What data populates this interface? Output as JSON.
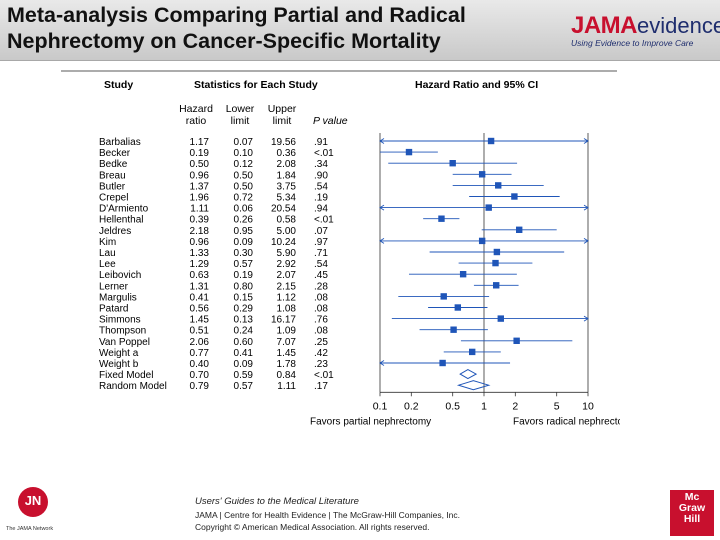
{
  "slide": {
    "title_line1": "Meta-analysis Comparing Partial and Radical",
    "title_line2": "Nephrectomy on Cancer-Specific Mortality"
  },
  "logo": {
    "brand_red": "JAMA",
    "brand_blue": "evidence",
    "tagline": "Using Evidence to Improve Care"
  },
  "chart_data": {
    "type": "forest",
    "headers": {
      "study": "Study",
      "stats": "Statistics for Each Study",
      "plot": "Hazard Ratio and 95% CI",
      "hr_line1": "Hazard",
      "hr_line2": "ratio",
      "lower_line1": "Lower",
      "lower_line2": "limit",
      "upper_line1": "Upper",
      "upper_line2": "limit",
      "p": "P value"
    },
    "x_scale": "log",
    "xlim": [
      0.1,
      10
    ],
    "x_ticks": [
      "0.1",
      "0.2",
      "0.5",
      "1",
      "2",
      "5",
      "10"
    ],
    "x_tick_values": [
      0.1,
      0.2,
      0.5,
      1,
      2,
      5,
      10
    ],
    "xlabel_left": "Favors partial nephrectomy",
    "xlabel_right": "Favors radical nephrectomy",
    "studies": [
      {
        "name": "Barbalias",
        "hr": "1.17",
        "lower": "0.07",
        "upper": "19.56",
        "p": ".91"
      },
      {
        "name": "Becker",
        "hr": "0.19",
        "lower": "0.10",
        "upper": "0.36",
        "p": "<.01"
      },
      {
        "name": "Bedke",
        "hr": "0.50",
        "lower": "0.12",
        "upper": "2.08",
        "p": ".34"
      },
      {
        "name": "Breau",
        "hr": "0.96",
        "lower": "0.50",
        "upper": "1.84",
        "p": ".90"
      },
      {
        "name": "Butler",
        "hr": "1.37",
        "lower": "0.50",
        "upper": "3.75",
        "p": ".54"
      },
      {
        "name": "Crepel",
        "hr": "1.96",
        "lower": "0.72",
        "upper": "5.34",
        "p": ".19"
      },
      {
        "name": "D'Armiento",
        "hr": "1.11",
        "lower": "0.06",
        "upper": "20.54",
        "p": ".94"
      },
      {
        "name": "Hellenthal",
        "hr": "0.39",
        "lower": "0.26",
        "upper": "0.58",
        "p": "<.01"
      },
      {
        "name": "Jeldres",
        "hr": "2.18",
        "lower": "0.95",
        "upper": "5.00",
        "p": ".07"
      },
      {
        "name": "Kim",
        "hr": "0.96",
        "lower": "0.09",
        "upper": "10.24",
        "p": ".97"
      },
      {
        "name": "Lau",
        "hr": "1.33",
        "lower": "0.30",
        "upper": "5.90",
        "p": ".71"
      },
      {
        "name": "Lee",
        "hr": "1.29",
        "lower": "0.57",
        "upper": "2.92",
        "p": ".54"
      },
      {
        "name": "Leibovich",
        "hr": "0.63",
        "lower": "0.19",
        "upper": "2.07",
        "p": ".45"
      },
      {
        "name": "Lerner",
        "hr": "1.31",
        "lower": "0.80",
        "upper": "2.15",
        "p": ".28"
      },
      {
        "name": "Margulis",
        "hr": "0.41",
        "lower": "0.15",
        "upper": "1.12",
        "p": ".08"
      },
      {
        "name": "Patard",
        "hr": "0.56",
        "lower": "0.29",
        "upper": "1.08",
        "p": ".08"
      },
      {
        "name": "Simmons",
        "hr": "1.45",
        "lower": "0.13",
        "upper": "16.17",
        "p": ".76"
      },
      {
        "name": "Thompson",
        "hr": "0.51",
        "lower": "0.24",
        "upper": "1.09",
        "p": ".08"
      },
      {
        "name": "Van Poppel",
        "hr": "2.06",
        "lower": "0.60",
        "upper": "7.07",
        "p": ".25"
      },
      {
        "name": "Weight a",
        "hr": "0.77",
        "lower": "0.41",
        "upper": "1.45",
        "p": ".42"
      },
      {
        "name": "Weight b",
        "hr": "0.40",
        "lower": "0.09",
        "upper": "1.78",
        "p": ".23"
      },
      {
        "name": "Fixed Model",
        "hr": "0.70",
        "lower": "0.59",
        "upper": "0.84",
        "p": "<.01",
        "summary": true
      },
      {
        "name": "Random Model",
        "hr": "0.79",
        "lower": "0.57",
        "upper": "1.11",
        "p": ".17",
        "summary": true
      }
    ]
  },
  "footer": {
    "book": "Users' Guides to the Medical Literature",
    "line1": "JAMA | Centre for Health Evidence | The McGraw-Hill Companies, Inc.",
    "line2": "Copyright © American Medical Association. All rights reserved.",
    "jn_mark": "JN",
    "jn_caption": "The JAMA Network",
    "publisher_l1": "Mc",
    "publisher_l2": "Graw",
    "publisher_l3": "Hill"
  },
  "colors": {
    "marker": "#1f55b8",
    "line": "#1f55b8",
    "text": "#1a1a1a",
    "brand_red": "#c8102e",
    "brand_blue": "#1f2e6e"
  }
}
